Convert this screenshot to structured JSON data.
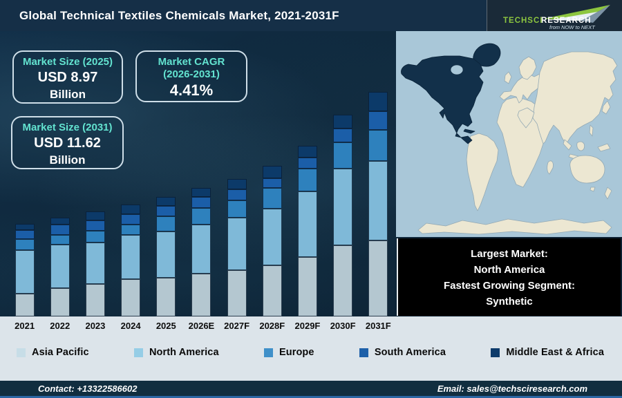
{
  "colors": {
    "header_bg": "#152f47",
    "logo_panel_bg": "#1a2a38",
    "stage_bg": "#0d2336",
    "accent_teal": "#63e3d0",
    "box_border": "#cfdfe9",
    "light_strip_bg": "#dce4ea",
    "footer_bg": "#112e3f",
    "footer_line": "#2b66a3",
    "map_ocean": "#a9c7d8",
    "map_land": "#ece7d2",
    "map_border_line": "#93a9b4",
    "map_highlight": "#12304a",
    "black_box_bg": "#000000",
    "brand_green": "#8dc63f"
  },
  "header": {
    "title": "Global Technical Textiles Chemicals Market, 2021-2031F",
    "logo": {
      "brand": "TechSci",
      "brand2": "Research",
      "tagline": "from NOW to NEXT"
    }
  },
  "info_boxes": [
    {
      "heading": "Market Size (2025)",
      "value": "USD 8.97",
      "unit": "Billion"
    },
    {
      "heading": "Market CAGR",
      "heading_line2": "(2026-2031)",
      "value": "4.41%"
    },
    {
      "heading": "Market Size (2031)",
      "value": "USD 11.62",
      "unit": "Billion"
    }
  ],
  "chart_data": {
    "type": "bar",
    "stacked": true,
    "title": "Global Technical Textiles Chemicals Market, 2021-2031F",
    "xlabel": "",
    "ylabel": "",
    "grid": false,
    "legend_position": "bottom",
    "value_note": "No value axis shown in source; series values are relative stacked-segment heights in pixels",
    "categories": [
      "2021",
      "2022",
      "2023",
      "2024",
      "2025",
      "2026E",
      "2027F",
      "2028F",
      "2029F",
      "2030F",
      "2031F"
    ],
    "series": [
      {
        "name": "Asia Pacific",
        "color": "#b4c7d0",
        "values": [
          33,
          41,
          47,
          54,
          56,
          62,
          67,
          74,
          86,
          103,
          110
        ]
      },
      {
        "name": "North America",
        "color": "#7fb9d8",
        "values": [
          63,
          63,
          60,
          64,
          67,
          71,
          76,
          82,
          95,
          111,
          115
        ]
      },
      {
        "name": "Europe",
        "color": "#2e81bd",
        "values": [
          16,
          14,
          17,
          15,
          22,
          24,
          25,
          30,
          33,
          38,
          45
        ]
      },
      {
        "name": "South America",
        "color": "#1b5ea8",
        "values": [
          13,
          15,
          15,
          15,
          15,
          16,
          16,
          14,
          16,
          20,
          27
        ]
      },
      {
        "name": "Middle East & Africa",
        "color": "#0c3a69",
        "values": [
          9,
          10,
          13,
          14,
          13,
          13,
          15,
          18,
          17,
          20,
          28
        ]
      }
    ]
  },
  "legend": {
    "items": [
      {
        "label": "Asia Pacific",
        "color": "#c7dde7"
      },
      {
        "label": "North America",
        "color": "#95cde6"
      },
      {
        "label": "Europe",
        "color": "#3f90c9"
      },
      {
        "label": "South America",
        "color": "#1d60a9"
      },
      {
        "label": "Middle East & Africa",
        "color": "#0d3b6b"
      }
    ]
  },
  "map_panel": {
    "lines": [
      "Largest Market:",
      "North America",
      "Fastest Growing Segment:",
      "Synthetic"
    ]
  },
  "footer": {
    "contact": "Contact: +13322586602",
    "email": "Email: sales@techsciresearch.com"
  }
}
